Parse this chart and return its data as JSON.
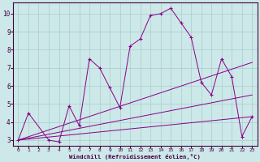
{
  "xlabel": "Windchill (Refroidissement éolien,°C)",
  "bg_color": "#cce8e8",
  "line_color": "#880088",
  "grid_color": "#aacccc",
  "axis_color": "#440044",
  "xlim": [
    -0.5,
    23.5
  ],
  "ylim": [
    2.7,
    10.6
  ],
  "xticks": [
    0,
    1,
    2,
    3,
    4,
    5,
    6,
    7,
    8,
    9,
    10,
    11,
    12,
    13,
    14,
    15,
    16,
    17,
    18,
    19,
    20,
    21,
    22,
    23
  ],
  "yticks": [
    3,
    4,
    5,
    6,
    7,
    8,
    9,
    10
  ],
  "main_series": {
    "x": [
      0,
      1,
      3,
      4,
      5,
      6,
      7,
      8,
      9,
      10,
      11,
      12,
      13,
      14,
      15,
      16,
      17,
      18,
      19,
      20,
      21,
      22,
      23
    ],
    "y": [
      3.0,
      4.5,
      3.0,
      2.9,
      4.9,
      3.8,
      7.5,
      7.0,
      5.9,
      4.8,
      8.2,
      8.6,
      9.9,
      10.0,
      10.3,
      9.5,
      8.7,
      6.2,
      5.5,
      7.5,
      6.5,
      3.2,
      4.3
    ]
  },
  "trend_lines": [
    {
      "x": [
        0,
        23
      ],
      "y": [
        3.0,
        4.3
      ]
    },
    {
      "x": [
        0,
        23
      ],
      "y": [
        3.0,
        5.5
      ]
    },
    {
      "x": [
        0,
        23
      ],
      "y": [
        3.0,
        7.3
      ]
    }
  ]
}
